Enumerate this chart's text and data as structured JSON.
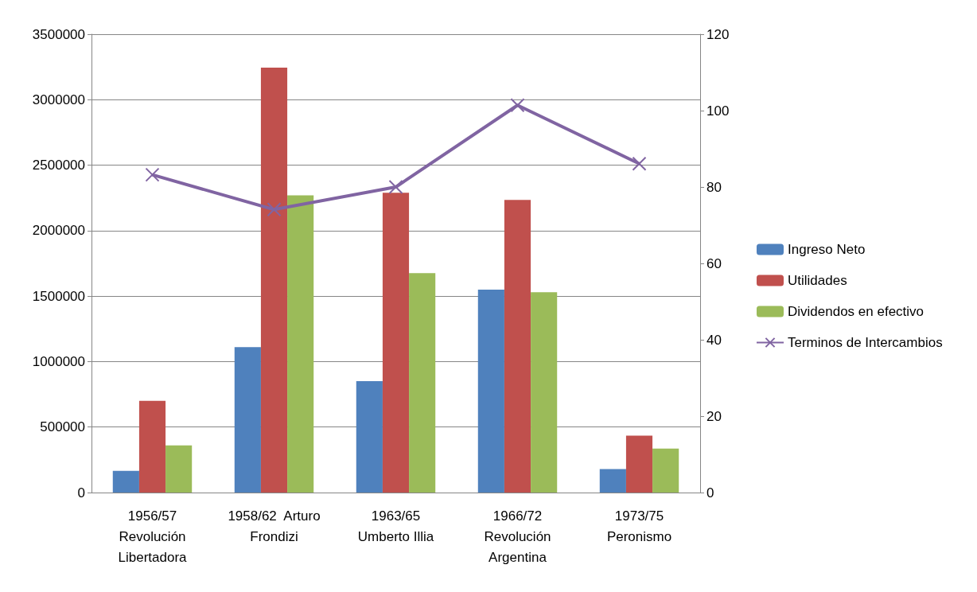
{
  "chart_data": {
    "type": "bar",
    "categories": [
      "1956/57\nRevolución\nLibertadora",
      "1958/62  Arturo\nFrondizi",
      "1963/65\nUmberto Illia",
      "1966/72\nRevolución\nArgentina",
      "1973/75\nPeronismo"
    ],
    "series": [
      {
        "name": "Ingreso Neto",
        "color": "#4f81bd",
        "values": [
          165000,
          1110000,
          850000,
          1550000,
          180000
        ]
      },
      {
        "name": "Utilidades",
        "color": "#c0504d",
        "values": [
          700000,
          3245000,
          2290000,
          2235000,
          435000
        ]
      },
      {
        "name": "Dividendos en efectivo",
        "color": "#9bbb59",
        "values": [
          360000,
          2270000,
          1675000,
          1530000,
          335000
        ]
      },
      {
        "name": "Terminos de Intercambios",
        "color": "#8064a2",
        "type": "line",
        "axis": "y2",
        "marker": "cross",
        "values": [
          83.2,
          74.1,
          80,
          101.4,
          86.1
        ]
      }
    ],
    "ylim": [
      0,
      3500000
    ],
    "yticks": [
      0,
      500000,
      1000000,
      1500000,
      2000000,
      2500000,
      3000000,
      3500000
    ],
    "y2lim": [
      0,
      120
    ],
    "y2ticks": [
      0,
      20,
      40,
      60,
      80,
      100,
      120
    ],
    "grid": "y",
    "legend": "right"
  }
}
